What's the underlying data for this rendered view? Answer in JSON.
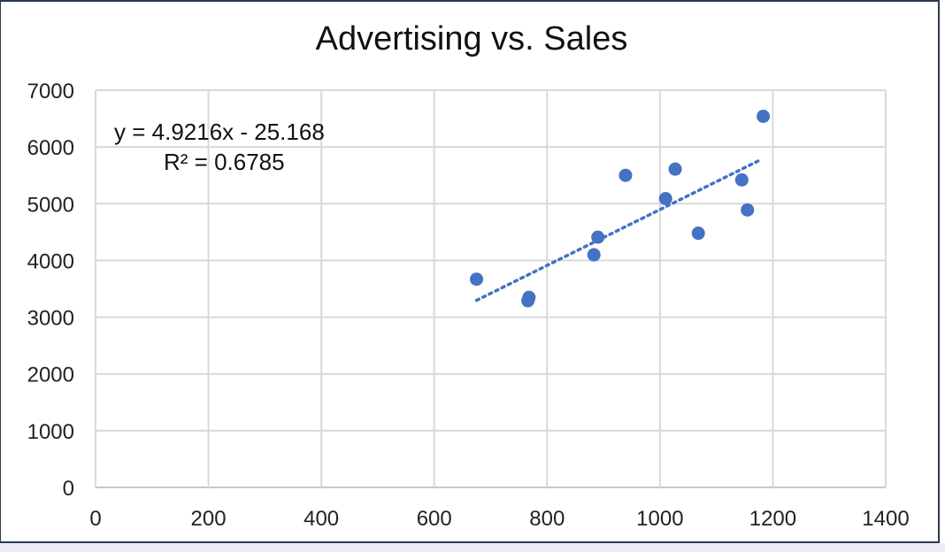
{
  "chart_data": {
    "type": "scatter",
    "title": "Advertising vs. Sales",
    "xlabel": "",
    "ylabel": "",
    "xlim": [
      0,
      1400
    ],
    "ylim": [
      0,
      7000
    ],
    "xticks": [
      0,
      200,
      400,
      600,
      800,
      1000,
      1200,
      1400
    ],
    "yticks": [
      0,
      1000,
      2000,
      3000,
      4000,
      5000,
      6000,
      7000
    ],
    "grid": true,
    "marker_color": "#4472c4",
    "trendline_color": "#4472c4",
    "points": [
      {
        "x": 675,
        "y": 3670
      },
      {
        "x": 768,
        "y": 3350
      },
      {
        "x": 766,
        "y": 3290
      },
      {
        "x": 883,
        "y": 4100
      },
      {
        "x": 890,
        "y": 4410
      },
      {
        "x": 939,
        "y": 5500
      },
      {
        "x": 1010,
        "y": 5090
      },
      {
        "x": 1027,
        "y": 5610
      },
      {
        "x": 1068,
        "y": 4480
      },
      {
        "x": 1145,
        "y": 5420
      },
      {
        "x": 1155,
        "y": 4890
      },
      {
        "x": 1183,
        "y": 6540
      }
    ],
    "trendline": {
      "type": "linear",
      "slope": 4.9216,
      "intercept": -25.168,
      "x_range": [
        675,
        1175
      ],
      "equation_label": "y = 4.9216x - 25.168",
      "r2_label": "R² = 0.6785"
    }
  }
}
